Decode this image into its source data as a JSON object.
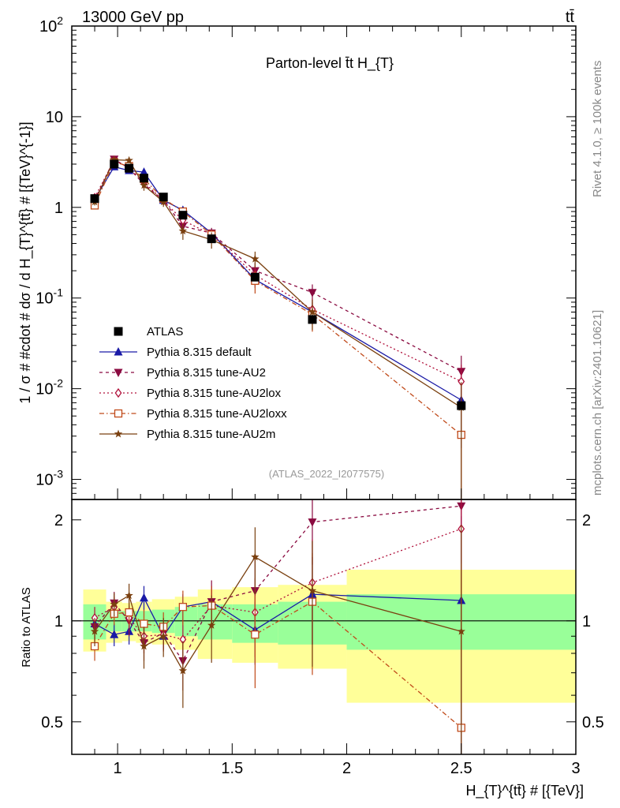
{
  "header": {
    "energy_label": "13000 GeV pp",
    "process_label": "tt̄"
  },
  "side_text": {
    "rivet": "Rivet 4.1.0, ≥ 100k events",
    "mcplots": "mcplots.cern.ch [arXiv:2401.10621]"
  },
  "chart_data": {
    "type": "line",
    "title": "Parton-level t̄t  H_{T}",
    "watermark": "(ATLAS_2022_I2077575)",
    "xlabel": "H_{T}^{tt̄} # [{TeV}]",
    "ylabel": "1 / σ # #cdot # dσ / d H_{T}^{tt̄} # [{TeV}^{-1}]",
    "ratio_ylabel": "Ratio to ATLAS",
    "xlim": [
      0.8,
      3.0
    ],
    "ylim": [
      0.0006,
      100
    ],
    "ratio_ylim": [
      0.4,
      2.3
    ],
    "y_scale": "log",
    "x_ticks": [
      "1",
      "1.5",
      "2",
      "2.5",
      "3"
    ],
    "y_ticks": [
      "10^-3",
      "10^-2",
      "10^-1",
      "1",
      "10",
      "10^2"
    ],
    "ratio_ticks": [
      "0.5",
      "1",
      "2"
    ],
    "legend_placement": "center-left",
    "data": {
      "name": "ATLAS",
      "x": [
        0.9,
        0.985,
        1.05,
        1.115,
        1.2,
        1.285,
        1.41,
        1.6,
        1.85,
        2.5
      ],
      "y": [
        1.25,
        3.0,
        2.7,
        2.1,
        1.3,
        0.82,
        0.45,
        0.17,
        0.058,
        0.0065
      ]
    },
    "ratio_bands": {
      "x_edges": [
        0.85,
        0.95,
        1.02,
        1.08,
        1.15,
        1.25,
        1.35,
        1.5,
        1.7,
        2.0,
        3.0
      ],
      "inner": [
        [
          0.88,
          1.12
        ],
        [
          0.93,
          1.07
        ],
        [
          0.93,
          1.07
        ],
        [
          0.93,
          1.07
        ],
        [
          0.92,
          1.08
        ],
        [
          0.9,
          1.1
        ],
        [
          0.88,
          1.12
        ],
        [
          0.86,
          1.12
        ],
        [
          0.85,
          1.14
        ],
        [
          0.82,
          1.2
        ]
      ],
      "outer": [
        [
          0.81,
          1.24
        ],
        [
          0.86,
          1.14
        ],
        [
          0.87,
          1.13
        ],
        [
          0.86,
          1.14
        ],
        [
          0.85,
          1.16
        ],
        [
          0.82,
          1.18
        ],
        [
          0.77,
          1.24
        ],
        [
          0.75,
          1.26
        ],
        [
          0.72,
          1.28
        ],
        [
          0.57,
          1.42
        ]
      ]
    },
    "series": [
      {
        "name": "Pythia 8.315 default",
        "color": "#1a1aa6",
        "dash": "solid",
        "marker": "triangle-up",
        "y": [
          1.22,
          2.8,
          2.55,
          2.45,
          1.2,
          0.93,
          0.52,
          0.16,
          0.07,
          0.0075
        ],
        "ratio": [
          0.98,
          0.91,
          0.93,
          1.17,
          0.9,
          1.1,
          1.14,
          0.94,
          1.2,
          1.15
        ],
        "ratio_err": [
          0.07,
          0.07,
          0.08,
          0.1,
          0.08,
          0.1,
          0.13,
          0.2,
          0.35,
          0.9
        ]
      },
      {
        "name": "Pythia 8.315 tune-AU2",
        "color": "#8a0a40",
        "dash": "4,4",
        "marker": "triangle-down",
        "y": [
          1.2,
          3.4,
          2.7,
          1.8,
          1.2,
          0.62,
          0.52,
          0.2,
          0.115,
          0.0155
        ],
        "ratio": [
          0.96,
          1.13,
          1.0,
          0.86,
          0.92,
          0.76,
          1.14,
          1.23,
          1.97,
          2.2
        ],
        "ratio_err": [
          0.09,
          0.09,
          0.1,
          0.1,
          0.1,
          0.14,
          0.18,
          0.3,
          0.5,
          1.2
        ]
      },
      {
        "name": "Pythia 8.315 tune-AU2lox",
        "color": "#b0103a",
        "dash": "2,3",
        "marker": "diamond-open",
        "y": [
          1.28,
          3.3,
          2.75,
          1.9,
          1.18,
          0.72,
          0.5,
          0.18,
          0.075,
          0.012
        ],
        "ratio": [
          1.02,
          1.1,
          1.02,
          0.9,
          0.91,
          0.88,
          1.11,
          1.06,
          1.3,
          1.88
        ],
        "ratio_err": [
          0.08,
          0.08,
          0.09,
          0.1,
          0.1,
          0.13,
          0.16,
          0.28,
          0.45,
          1.1
        ]
      },
      {
        "name": "Pythia 8.315 tune-AU2loxx",
        "color": "#c04a1a",
        "dash": "6,3,1.5,3",
        "marker": "square-open",
        "y": [
          1.05,
          3.15,
          2.85,
          2.05,
          1.25,
          0.9,
          0.5,
          0.155,
          0.066,
          0.0031
        ],
        "ratio": [
          0.84,
          1.05,
          1.06,
          0.98,
          0.96,
          1.1,
          1.11,
          0.91,
          1.14,
          0.48
        ],
        "ratio_err": [
          0.08,
          0.08,
          0.09,
          0.1,
          0.1,
          0.13,
          0.16,
          0.28,
          0.45,
          1.0
        ]
      },
      {
        "name": "Pythia 8.315 tune-AU2m",
        "color": "#7a4010",
        "dash": "solid",
        "marker": "star",
        "y": [
          1.15,
          3.35,
          3.3,
          1.75,
          1.15,
          0.55,
          0.44,
          0.27,
          0.07,
          0.0062
        ],
        "ratio": [
          0.93,
          1.12,
          1.19,
          0.84,
          0.9,
          0.71,
          0.97,
          1.55,
          1.23,
          0.93
        ],
        "ratio_err": [
          0.09,
          0.09,
          0.1,
          0.12,
          0.12,
          0.16,
          0.22,
          0.35,
          0.5,
          1.0
        ]
      }
    ]
  }
}
